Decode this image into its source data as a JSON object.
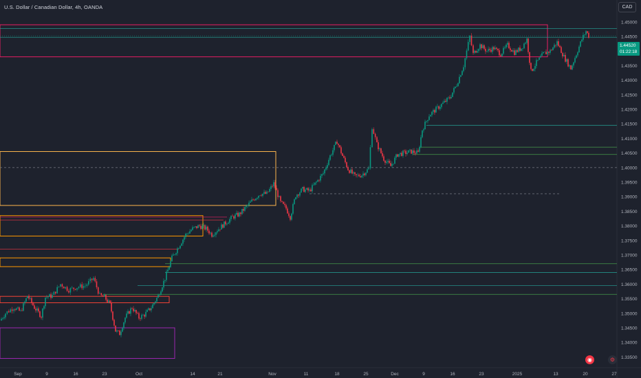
{
  "header": {
    "title": "U.S. Dollar / Canadian Dollar, 4h, OANDA",
    "currency": "CAD"
  },
  "price_label": {
    "price": "1.44520",
    "countdown": "01:22:18"
  },
  "chart_data": {
    "type": "candlestick",
    "symbol": "U.S. Dollar / Canadian Dollar",
    "interval": "4h",
    "source": "OANDA",
    "ylim": [
      1.3325,
      1.4575
    ],
    "y_ticks": [
      "1.45000",
      "1.44500",
      "1.44000",
      "1.43500",
      "1.43000",
      "1.42500",
      "1.42000",
      "1.41500",
      "1.41000",
      "1.40500",
      "1.40000",
      "1.39500",
      "1.39000",
      "1.38500",
      "1.38000",
      "1.37500",
      "1.37000",
      "1.36500",
      "1.36000",
      "1.35500",
      "1.35000",
      "1.34500",
      "1.34000",
      "1.33500"
    ],
    "x_ticks": [
      "Sep",
      "9",
      "16",
      "23",
      "Oct",
      "14",
      "21",
      "Nov",
      "11",
      "18",
      "25",
      "Dec",
      "9",
      "16",
      "23",
      "2025",
      "13",
      "20",
      "27"
    ],
    "last_price": 1.4452,
    "price_path": [
      [
        0,
        1.3475
      ],
      [
        8,
        1.35
      ],
      [
        20,
        1.352
      ],
      [
        30,
        1.3505
      ],
      [
        40,
        1.356
      ],
      [
        50,
        1.352
      ],
      [
        60,
        1.349
      ],
      [
        66,
        1.3555
      ],
      [
        76,
        1.356
      ],
      [
        88,
        1.36
      ],
      [
        100,
        1.358
      ],
      [
        112,
        1.359
      ],
      [
        124,
        1.3595
      ],
      [
        136,
        1.362
      ],
      [
        145,
        1.356
      ],
      [
        152,
        1.3555
      ],
      [
        160,
        1.353
      ],
      [
        168,
        1.344
      ],
      [
        174,
        1.343
      ],
      [
        182,
        1.3485
      ],
      [
        192,
        1.352
      ],
      [
        202,
        1.3485
      ],
      [
        210,
        1.3495
      ],
      [
        220,
        1.352
      ],
      [
        230,
        1.356
      ],
      [
        240,
        1.362
      ],
      [
        250,
        1.369
      ],
      [
        260,
        1.373
      ],
      [
        270,
        1.377
      ],
      [
        280,
        1.379
      ],
      [
        290,
        1.38
      ],
      [
        300,
        1.379
      ],
      [
        308,
        1.377
      ],
      [
        318,
        1.379
      ],
      [
        328,
        1.381
      ],
      [
        338,
        1.383
      ],
      [
        348,
        1.384
      ],
      [
        358,
        1.3865
      ],
      [
        368,
        1.389
      ],
      [
        378,
        1.391
      ],
      [
        388,
        1.391
      ],
      [
        398,
        1.3945
      ],
      [
        408,
        1.388
      ],
      [
        416,
        1.386
      ],
      [
        422,
        1.383
      ],
      [
        430,
        1.3905
      ],
      [
        440,
        1.3925
      ],
      [
        450,
        1.392
      ],
      [
        460,
        1.395
      ],
      [
        470,
        1.398
      ],
      [
        480,
        1.404
      ],
      [
        490,
        1.409
      ],
      [
        498,
        1.404
      ],
      [
        506,
        1.3995
      ],
      [
        516,
        1.397
      ],
      [
        526,
        1.3975
      ],
      [
        536,
        1.3995
      ],
      [
        541,
        1.414
      ],
      [
        548,
        1.408
      ],
      [
        558,
        1.403
      ],
      [
        568,
        1.4005
      ],
      [
        578,
        1.4045
      ],
      [
        588,
        1.405
      ],
      [
        598,
        1.4055
      ],
      [
        608,
        1.405
      ],
      [
        614,
        1.413
      ],
      [
        624,
        1.418
      ],
      [
        634,
        1.42
      ],
      [
        644,
        1.422
      ],
      [
        654,
        1.424
      ],
      [
        664,
        1.4285
      ],
      [
        674,
        1.435
      ],
      [
        683,
        1.445
      ],
      [
        688,
        1.439
      ],
      [
        698,
        1.442
      ],
      [
        708,
        1.44
      ],
      [
        718,
        1.441
      ],
      [
        728,
        1.439
      ],
      [
        738,
        1.442
      ],
      [
        748,
        1.4395
      ],
      [
        758,
        1.441
      ],
      [
        766,
        1.444
      ],
      [
        772,
        1.433
      ],
      [
        780,
        1.436
      ],
      [
        790,
        1.439
      ],
      [
        800,
        1.44
      ],
      [
        810,
        1.443
      ],
      [
        820,
        1.438
      ],
      [
        830,
        1.434
      ],
      [
        838,
        1.439
      ],
      [
        846,
        1.444
      ],
      [
        852,
        1.4468
      ],
      [
        856,
        1.4452
      ]
    ],
    "annotations": {
      "rectangles": [
        {
          "price_top": 1.449,
          "price_bottom": 1.438,
          "color": "#e91e63"
        },
        {
          "price_top": 1.4055,
          "price_bottom": 1.387,
          "color": "#ffb74d"
        },
        {
          "price_top": 1.3835,
          "price_bottom": 1.3765,
          "color": "#ff9800"
        },
        {
          "price_top": 1.369,
          "price_bottom": 1.366,
          "color": "#ff9800"
        },
        {
          "price_top": 1.345,
          "price_bottom": 1.3345,
          "color": "#9c27b0"
        },
        {
          "price_top": 1.3558,
          "price_bottom": 1.3536,
          "color": "#f44336"
        }
      ],
      "horizontal_lines": [
        {
          "price": 1.44775,
          "color": "#26a69a"
        },
        {
          "price": 1.4447,
          "color": "#26a69a"
        },
        {
          "price": 1.4145,
          "color": "#26a69a"
        },
        {
          "price": 1.407,
          "color": "#4caf50"
        },
        {
          "price": 1.4045,
          "color": "#4caf50"
        },
        {
          "price": 1.4,
          "color": "#787b86",
          "dashed": true
        },
        {
          "price": 1.391,
          "color": "#787b86",
          "dashed": true
        },
        {
          "price": 1.383,
          "color": "#e91e63"
        },
        {
          "price": 1.382,
          "color": "#f23645"
        },
        {
          "price": 1.372,
          "color": "#f23645"
        },
        {
          "price": 1.367,
          "color": "#4caf50"
        },
        {
          "price": 1.364,
          "color": "#26a69a"
        },
        {
          "price": 1.3565,
          "color": "#4caf50"
        },
        {
          "price": 1.3595,
          "color": "#26a69a"
        }
      ]
    }
  }
}
